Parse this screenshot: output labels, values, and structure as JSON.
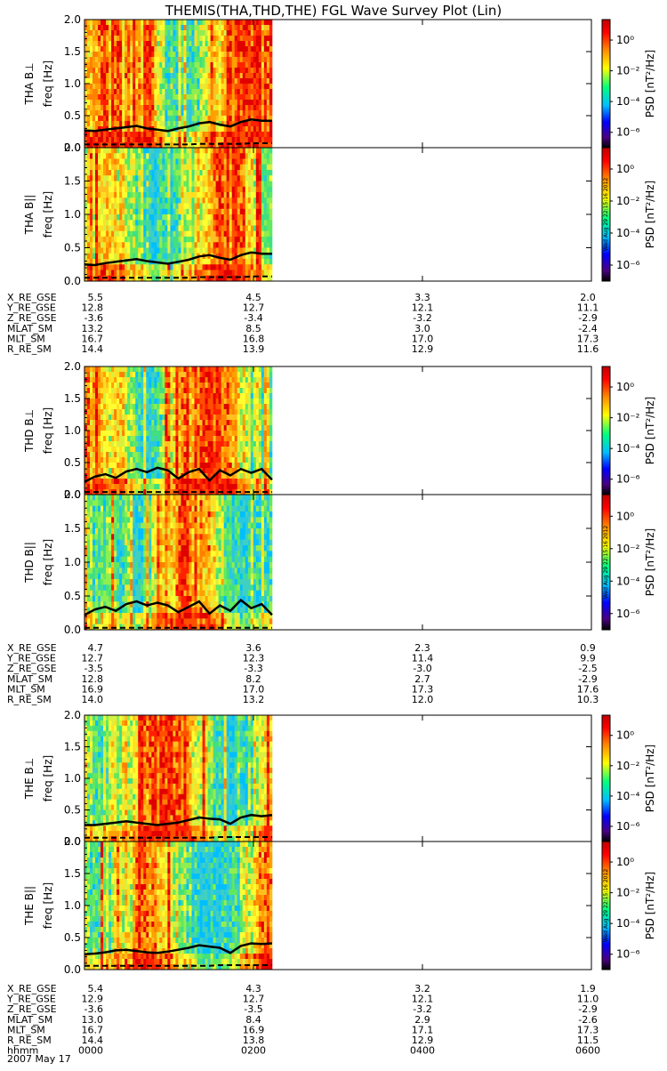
{
  "title": "THEMIS(THA,THD,THE) FGL Wave Survey Plot (Lin)",
  "freq_ticks": [
    "0.0",
    "0.5",
    "1.0",
    "1.5",
    "2.0"
  ],
  "freq_label": "freq [Hz]",
  "colorbar": {
    "ticks": [
      "10⁰",
      "10⁻²",
      "10⁻⁴",
      "10⁻⁶"
    ],
    "label": "PSD [nT²/Hz]",
    "stamp": "Wed Aug 29 22:15:16 2012",
    "colors": [
      "#000000",
      "#4b0082",
      "#0000ff",
      "#00bfff",
      "#00ff7f",
      "#ffff00",
      "#ff8c00",
      "#ff0000",
      "#c00000"
    ]
  },
  "chart_data": [
    {
      "type": "heatmap",
      "probe": "THA",
      "panel_label": "THA B⊥",
      "ylabel": "freq [Hz]",
      "ylim": [
        0,
        2.0
      ],
      "xlim_hhmm": [
        0,
        600
      ],
      "data_end_hhmm": 222,
      "line_solid_hz": [
        0.27,
        0.26,
        0.28,
        0.3,
        0.32,
        0.34,
        0.3,
        0.28,
        0.26,
        0.3,
        0.33,
        0.38,
        0.4,
        0.36,
        0.33,
        0.4,
        0.44,
        0.42,
        0.42
      ],
      "line_dash_hz": [
        0.05,
        0.05,
        0.05,
        0.05,
        0.05,
        0.05,
        0.05,
        0.05,
        0.05,
        0.05,
        0.05,
        0.06,
        0.06,
        0.06,
        0.06,
        0.06,
        0.07,
        0.07,
        0.07
      ]
    },
    {
      "type": "heatmap",
      "probe": "THA",
      "panel_label": "THA B||",
      "ylabel": "freq [Hz]",
      "ylim": [
        0,
        2.0
      ],
      "xlim_hhmm": [
        0,
        600
      ],
      "data_end_hhmm": 222,
      "line_solid_hz": [
        0.25,
        0.24,
        0.27,
        0.29,
        0.31,
        0.33,
        0.3,
        0.28,
        0.26,
        0.29,
        0.32,
        0.37,
        0.39,
        0.35,
        0.32,
        0.39,
        0.43,
        0.41,
        0.41
      ],
      "line_dash_hz": [
        0.05,
        0.05,
        0.05,
        0.05,
        0.05,
        0.05,
        0.05,
        0.05,
        0.05,
        0.05,
        0.05,
        0.06,
        0.06,
        0.06,
        0.06,
        0.06,
        0.07,
        0.07,
        0.07
      ]
    },
    {
      "type": "heatmap",
      "probe": "THD",
      "panel_label": "THD B⊥",
      "ylabel": "freq [Hz]",
      "ylim": [
        0,
        2.0
      ],
      "xlim_hhmm": [
        0,
        600
      ],
      "data_end_hhmm": 222,
      "line_solid_hz": [
        0.2,
        0.28,
        0.32,
        0.26,
        0.36,
        0.4,
        0.35,
        0.42,
        0.38,
        0.25,
        0.35,
        0.4,
        0.22,
        0.38,
        0.3,
        0.4,
        0.34,
        0.4,
        0.23
      ],
      "line_dash_hz": [
        0.04,
        0.04,
        0.04,
        0.04,
        0.04,
        0.04,
        0.04,
        0.04,
        0.04,
        0.04,
        0.04,
        0.04,
        0.04,
        0.04,
        0.04,
        0.04,
        0.04,
        0.04,
        0.04
      ]
    },
    {
      "type": "heatmap",
      "probe": "THD",
      "panel_label": "THD B||",
      "ylabel": "freq [Hz]",
      "ylim": [
        0,
        2.0
      ],
      "xlim_hhmm": [
        0,
        600
      ],
      "data_end_hhmm": 222,
      "line_solid_hz": [
        0.22,
        0.3,
        0.34,
        0.28,
        0.38,
        0.42,
        0.36,
        0.4,
        0.36,
        0.26,
        0.34,
        0.42,
        0.24,
        0.36,
        0.28,
        0.44,
        0.32,
        0.38,
        0.22
      ],
      "line_dash_hz": [
        0.03,
        0.03,
        0.03,
        0.03,
        0.03,
        0.03,
        0.03,
        0.03,
        0.03,
        0.03,
        0.03,
        0.03,
        0.03,
        0.03,
        0.03,
        0.03,
        0.03,
        0.03,
        0.03
      ]
    },
    {
      "type": "heatmap",
      "probe": "THE",
      "panel_label": "THE B⊥",
      "ylabel": "freq [Hz]",
      "ylim": [
        0,
        2.0
      ],
      "xlim_hhmm": [
        0,
        600
      ],
      "data_end_hhmm": 222,
      "line_solid_hz": [
        0.26,
        0.26,
        0.28,
        0.3,
        0.32,
        0.3,
        0.28,
        0.26,
        0.28,
        0.3,
        0.34,
        0.38,
        0.36,
        0.35,
        0.28,
        0.38,
        0.42,
        0.4,
        0.42
      ],
      "line_dash_hz": [
        0.06,
        0.06,
        0.06,
        0.06,
        0.06,
        0.06,
        0.06,
        0.06,
        0.06,
        0.06,
        0.06,
        0.06,
        0.06,
        0.07,
        0.07,
        0.07,
        0.07,
        0.07,
        0.07
      ]
    },
    {
      "type": "heatmap",
      "probe": "THE",
      "panel_label": "THE B||",
      "ylabel": "freq [Hz]",
      "ylim": [
        0,
        2.0
      ],
      "xlim_hhmm": [
        0,
        600
      ],
      "data_end_hhmm": 222,
      "line_solid_hz": [
        0.24,
        0.25,
        0.27,
        0.3,
        0.31,
        0.29,
        0.27,
        0.26,
        0.28,
        0.31,
        0.34,
        0.38,
        0.36,
        0.34,
        0.26,
        0.37,
        0.41,
        0.4,
        0.41
      ],
      "line_dash_hz": [
        0.06,
        0.06,
        0.06,
        0.06,
        0.06,
        0.06,
        0.06,
        0.06,
        0.06,
        0.06,
        0.06,
        0.06,
        0.06,
        0.07,
        0.07,
        0.07,
        0.07,
        0.07,
        0.07
      ]
    }
  ],
  "ephemeris": [
    {
      "rows": [
        {
          "name": "X_RE_GSE",
          "vals": [
            "5.5",
            "4.5",
            "3.3",
            "2.0"
          ]
        },
        {
          "name": "Y_RE_GSE",
          "vals": [
            "12.8",
            "12.7",
            "12.1",
            "11.1"
          ]
        },
        {
          "name": "Z_RE_GSE",
          "vals": [
            "-3.6",
            "-3.4",
            "-3.2",
            "-2.9"
          ]
        },
        {
          "name": "MLAT_SM",
          "vals": [
            "13.2",
            "8.5",
            "3.0",
            "-2.4"
          ]
        },
        {
          "name": "MLT_SM",
          "vals": [
            "16.7",
            "16.8",
            "17.0",
            "17.3"
          ]
        },
        {
          "name": "R_RE_SM",
          "vals": [
            "14.4",
            "13.9",
            "12.9",
            "11.6"
          ]
        }
      ]
    },
    {
      "rows": [
        {
          "name": "X_RE_GSE",
          "vals": [
            "4.7",
            "3.6",
            "2.3",
            "0.9"
          ]
        },
        {
          "name": "Y_RE_GSE",
          "vals": [
            "12.7",
            "12.3",
            "11.4",
            "9.9"
          ]
        },
        {
          "name": "Z_RE_GSE",
          "vals": [
            "-3.5",
            "-3.3",
            "-3.0",
            "-2.5"
          ]
        },
        {
          "name": "MLAT_SM",
          "vals": [
            "12.8",
            "8.2",
            "2.7",
            "-2.9"
          ]
        },
        {
          "name": "MLT_SM",
          "vals": [
            "16.9",
            "17.0",
            "17.3",
            "17.6"
          ]
        },
        {
          "name": "R_RE_SM",
          "vals": [
            "14.0",
            "13.2",
            "12.0",
            "10.3"
          ]
        }
      ]
    },
    {
      "rows": [
        {
          "name": "X_RE_GSE",
          "vals": [
            "5.4",
            "4.3",
            "3.2",
            "1.9"
          ]
        },
        {
          "name": "Y_RE_GSE",
          "vals": [
            "12.9",
            "12.7",
            "12.1",
            "11.0"
          ]
        },
        {
          "name": "Z_RE_GSE",
          "vals": [
            "-3.6",
            "-3.5",
            "-3.2",
            "-2.9"
          ]
        },
        {
          "name": "MLAT_SM",
          "vals": [
            "13.0",
            "8.4",
            "2.9",
            "-2.6"
          ]
        },
        {
          "name": "MLT_SM",
          "vals": [
            "16.7",
            "16.9",
            "17.1",
            "17.3"
          ]
        },
        {
          "name": "R_RE_SM",
          "vals": [
            "14.4",
            "13.8",
            "12.9",
            "11.5"
          ]
        },
        {
          "name": "hhmm",
          "vals": [
            "0000",
            "0200",
            "0400",
            "0600"
          ]
        }
      ]
    }
  ],
  "date": "2007 May 17"
}
